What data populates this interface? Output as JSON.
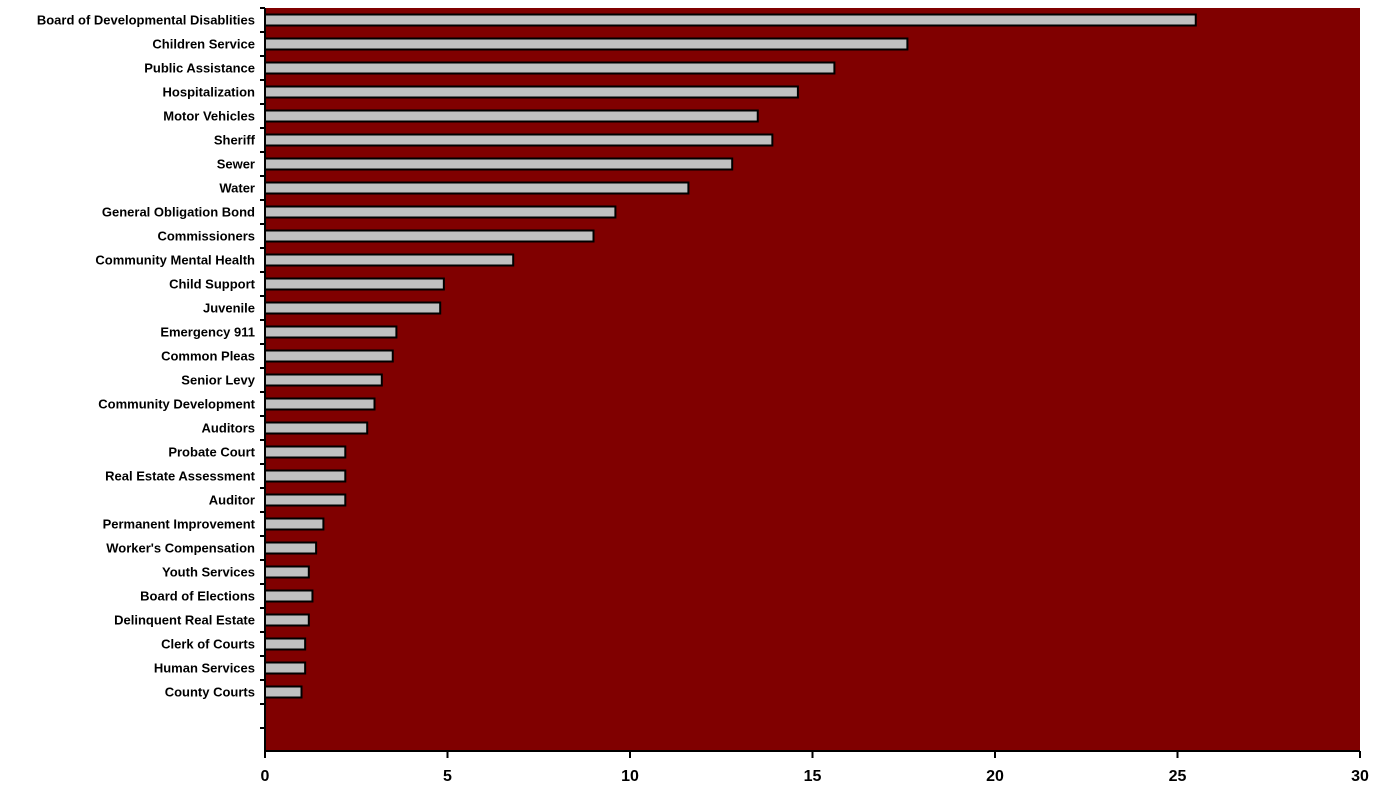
{
  "chart_data": {
    "type": "bar",
    "orientation": "horizontal",
    "categories": [
      "Board of Developmental Disablities",
      "Children Service",
      "Public Assistance",
      "Hospitalization",
      "Motor Vehicles",
      "Sheriff",
      "Sewer",
      "Water",
      "General Obligation Bond",
      "Commissioners",
      "Community Mental Health",
      "Child Support",
      "Juvenile",
      "Emergency 911",
      "Common Pleas",
      "Senior Levy",
      "Community Development",
      "Auditors",
      "Probate Court",
      "Real Estate Assessment",
      "Auditor",
      "Permanent Improvement",
      "Worker's Compensation",
      "Youth Services",
      "Board of Elections",
      "Delinquent Real Estate",
      "Clerk of Courts",
      "Human Services",
      "County Courts"
    ],
    "values": [
      25.5,
      17.6,
      15.6,
      14.6,
      13.5,
      13.9,
      12.8,
      11.6,
      9.6,
      9.0,
      6.8,
      4.9,
      4.8,
      3.6,
      3.5,
      3.2,
      3.0,
      2.8,
      2.2,
      2.2,
      2.2,
      1.6,
      1.4,
      1.2,
      1.3,
      1.2,
      1.1,
      1.1,
      1.0
    ],
    "title": "",
    "xlabel": "",
    "ylabel": "",
    "xlim": [
      0,
      30
    ],
    "xticks": [
      0,
      5,
      10,
      15,
      20,
      25,
      30
    ],
    "grid": false,
    "legend": "none",
    "colors": {
      "plot_background": "#800000",
      "bar_fill": "#c0c0c0",
      "bar_stroke": "#000000",
      "axis": "#000000"
    }
  }
}
